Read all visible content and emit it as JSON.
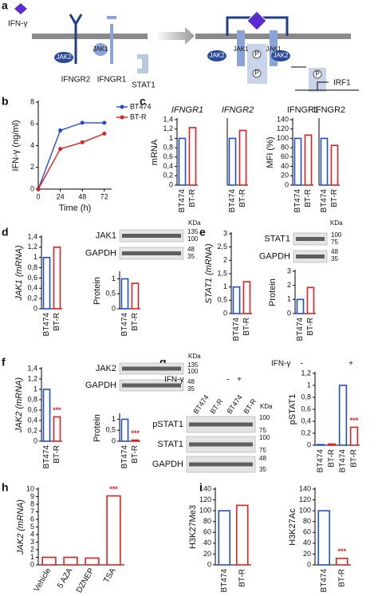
{
  "panel_labels": [
    "a",
    "b",
    "c",
    "d",
    "e",
    "f",
    "g",
    "h",
    "i"
  ],
  "diagram": {
    "ligand": "IFN-γ",
    "receptor2": "IFNGR2",
    "receptor1": "IFNGR1",
    "stat": "STAT1",
    "kinase2": "JAK2",
    "kinase1": "JAK1",
    "phospho": "P",
    "target": "IRF1"
  },
  "blots": [
    {
      "rows": [
        "JAK1",
        "GAPDH"
      ],
      "markers": [
        "135",
        "100",
        "48",
        "35"
      ],
      "unit": "KDa"
    },
    {
      "rows": [
        "STAT1",
        "GAPDH"
      ],
      "markers": [
        "100",
        "75",
        "48",
        "35"
      ],
      "unit": "KDa"
    },
    {
      "rows": [
        "JAK2",
        "GAPDH"
      ],
      "markers": [
        "135",
        "100",
        "48",
        "35"
      ],
      "unit": "KDa"
    },
    {
      "rows": [
        "pSTAT1",
        "STAT1",
        "GAPDH"
      ],
      "markers": [
        "100",
        "75",
        "100",
        "75",
        "48",
        "35"
      ],
      "unit": "KDa"
    }
  ],
  "treatment": {
    "name": "IFN-γ",
    "levels": [
      "-",
      "+"
    ],
    "lanes": [
      "BT474",
      "BT-R",
      "BT474",
      "BT-R"
    ]
  },
  "chart_data": [
    {
      "type": "line",
      "xlabel": "Time (h)",
      "ylabel": "IFN-γ (ng/ml)",
      "x": [
        0,
        24,
        48,
        72
      ],
      "xlim": [
        0,
        80
      ],
      "xticks": [
        0,
        24,
        48,
        72
      ],
      "ylim": [
        0,
        8
      ],
      "yticks": [
        0,
        2,
        4,
        6,
        8
      ],
      "series": [
        {
          "name": "BT474",
          "color": "#1f4fd1",
          "values": [
            0,
            5.4,
            6.1,
            6.1
          ]
        },
        {
          "name": "BT-R",
          "color": "#e02020",
          "values": [
            0,
            3.7,
            4.3,
            5.1
          ]
        }
      ]
    },
    {
      "type": "bar",
      "title": "IFNGR1",
      "ylabel": "mRNA",
      "categories": [
        "BT474",
        "BT-R"
      ],
      "values": [
        1,
        1.23
      ],
      "colors": [
        "#1f4fd1",
        "#e02020"
      ],
      "ylim": [
        0,
        1.4
      ],
      "yticks": [
        0,
        {
          "value": 0.2,
          "label": "0,2"
        },
        {
          "value": 0.4,
          "label": "0,4"
        },
        {
          "value": 0.6,
          "label": "0,6"
        },
        {
          "value": 0.8,
          "label": "0,8"
        },
        1,
        {
          "value": 1.2,
          "label": "1,2"
        },
        {
          "value": 1.4,
          "label": "1,4"
        }
      ]
    },
    {
      "type": "bar",
      "title": "IFNGR2",
      "categories": [
        "BT474",
        "BT-R"
      ],
      "values": [
        1,
        1.17
      ],
      "colors": [
        "#1f4fd1",
        "#e02020"
      ],
      "ylim": [
        0,
        1.4
      ]
    },
    {
      "type": "bar",
      "title": "IFNGR1",
      "ylabel": "MFI (%)",
      "categories": [
        "BT474",
        "BT-R"
      ],
      "values": [
        100,
        107
      ],
      "colors": [
        "#1f4fd1",
        "#e02020"
      ],
      "ylim": [
        0,
        140
      ],
      "yticks": [
        0,
        20,
        40,
        60,
        80,
        100,
        120,
        140
      ]
    },
    {
      "type": "bar",
      "title": "IFNGR2",
      "categories": [
        "BT474",
        "BT-R"
      ],
      "values": [
        100,
        85
      ],
      "colors": [
        "#1f4fd1",
        "#e02020"
      ],
      "ylim": [
        0,
        140
      ]
    },
    {
      "type": "bar",
      "ylabel": "JAK1 (mRNA)",
      "categories": [
        "BT474",
        "BT-R"
      ],
      "values": [
        1,
        1.2
      ],
      "colors": [
        "#1f4fd1",
        "#e02020"
      ],
      "ylim": [
        0,
        1.4
      ],
      "yticks": [
        0,
        {
          "value": 0.2,
          "label": "0,2"
        },
        {
          "value": 0.4,
          "label": "0,4"
        },
        {
          "value": 0.6,
          "label": "0,6"
        },
        {
          "value": 0.8,
          "label": "0,8"
        },
        1,
        {
          "value": 1.2,
          "label": "1,2"
        },
        {
          "value": 1.4,
          "label": "1,4"
        }
      ]
    },
    {
      "type": "bar",
      "ylabel": "Protein",
      "categories": [
        "BT474",
        "BT-R"
      ],
      "values": [
        1,
        0.85
      ],
      "colors": [
        "#1f4fd1",
        "#e02020"
      ],
      "ylim": [
        0,
        1.2
      ],
      "yticks": [
        0,
        {
          "value": 0.5,
          "label": "0,5"
        },
        1
      ]
    },
    {
      "type": "bar",
      "ylabel": "STAT1 (mRNA)",
      "categories": [
        "BT474",
        "BT-R"
      ],
      "values": [
        1,
        1.2
      ],
      "colors": [
        "#1f4fd1",
        "#e02020"
      ],
      "ylim": [
        0,
        3
      ],
      "yticks": [
        0,
        {
          "value": 0.5,
          "label": "0,5"
        },
        1,
        {
          "value": 1.5,
          "label": "1,5"
        },
        2,
        {
          "value": 2.5,
          "label": "2,5"
        },
        3
      ]
    },
    {
      "type": "bar",
      "ylabel": "Protein",
      "categories": [
        "BT474",
        "BT-R"
      ],
      "values": [
        1,
        1.85
      ],
      "colors": [
        "#1f4fd1",
        "#e02020"
      ],
      "ylim": [
        0,
        3
      ],
      "yticks": [
        0,
        1,
        2,
        3
      ]
    },
    {
      "type": "bar",
      "ylabel": "JAK2 (mRNA)",
      "categories": [
        "BT474",
        "BT-R"
      ],
      "values": [
        1,
        0.47
      ],
      "colors": [
        "#1f4fd1",
        "#e02020"
      ],
      "significance": [
        null,
        "***"
      ],
      "ylim": [
        0,
        1.4
      ],
      "yticks": [
        0,
        {
          "value": 0.2,
          "label": "0,2"
        },
        {
          "value": 0.4,
          "label": "0,4"
        },
        {
          "value": 0.6,
          "label": "0,6"
        },
        {
          "value": 0.8,
          "label": "0,8"
        },
        1,
        {
          "value": 1.2,
          "label": "1,2"
        },
        {
          "value": 1.4,
          "label": "1,4"
        }
      ]
    },
    {
      "type": "bar",
      "ylabel": "Protein",
      "categories": [
        "BT474",
        "BT-R"
      ],
      "values": [
        1,
        0.05
      ],
      "colors": [
        "#1f4fd1",
        "#e02020"
      ],
      "significance": [
        null,
        "***"
      ],
      "ylim": [
        0,
        1.2
      ],
      "yticks": [
        0,
        {
          "value": 0.5,
          "label": "0,5"
        },
        1
      ]
    },
    {
      "type": "bar",
      "ylabel": "pSTAT1",
      "categories": [
        "BT474",
        "BT-R",
        "BT474",
        "BT-R"
      ],
      "values": [
        0.01,
        0.02,
        1,
        0.3
      ],
      "colors": [
        "#1f4fd1",
        "#e02020",
        "#1f4fd1",
        "#e02020"
      ],
      "significance": [
        null,
        null,
        null,
        "***"
      ],
      "ylim": [
        0,
        1.2
      ],
      "yticks": [
        0,
        {
          "value": 0.2,
          "label": "0,2"
        },
        {
          "value": 0.4,
          "label": "0,4"
        },
        {
          "value": 0.6,
          "label": "0,6"
        },
        {
          "value": 0.8,
          "label": "0,8"
        },
        1,
        {
          "value": 1.2,
          "label": "1,2"
        }
      ]
    },
    {
      "type": "bar",
      "ylabel": "JAK2 (mRNA)",
      "categories": [
        "Vehicle",
        "5 AZA",
        "DZNEP",
        "TSA"
      ],
      "values": [
        1,
        1,
        0.9,
        9.1
      ],
      "colors": [
        "#e02020",
        "#e02020",
        "#e02020",
        "#e02020"
      ],
      "significance": [
        null,
        null,
        null,
        "***"
      ],
      "ylim": [
        0,
        10
      ],
      "yticks": [
        0,
        1,
        2,
        3,
        4,
        5,
        6,
        7,
        8,
        9,
        10
      ]
    },
    {
      "type": "bar",
      "ylabel": "H3K27Me3",
      "categories": [
        "BT474",
        "BT-R"
      ],
      "values": [
        100,
        110
      ],
      "colors": [
        "#1f4fd1",
        "#e02020"
      ],
      "ylim": [
        0,
        140
      ],
      "yticks": [
        0,
        20,
        40,
        60,
        80,
        100,
        120,
        140
      ]
    },
    {
      "type": "bar",
      "ylabel": "H3K27Ac",
      "categories": [
        "BT474",
        "BT-R"
      ],
      "values": [
        100,
        12
      ],
      "colors": [
        "#1f4fd1",
        "#e02020"
      ],
      "significance": [
        null,
        "***"
      ],
      "ylim": [
        0,
        140
      ],
      "yticks": [
        0,
        20,
        40,
        60,
        80,
        100,
        120,
        140
      ]
    }
  ]
}
